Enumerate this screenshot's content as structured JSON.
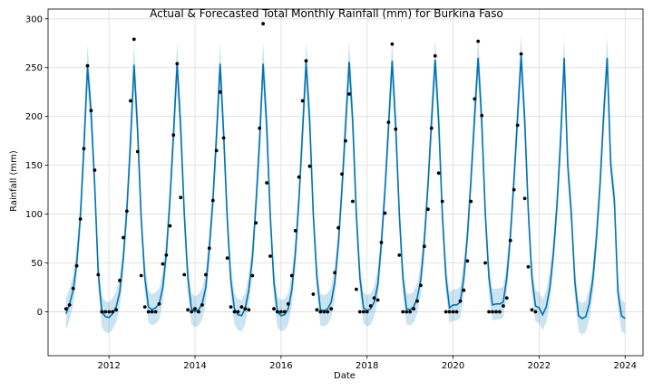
{
  "chart_data": {
    "type": "line",
    "title": "Actual & Forecasted Total Monthly Rainfall (mm) for Burkina Faso",
    "xlabel": "Date",
    "ylabel": "Rainfall (mm)",
    "xlim": [
      "2010-08-01",
      "2024-06-01"
    ],
    "ylim": [
      -45,
      310
    ],
    "x_ticks": [
      "2012",
      "2014",
      "2016",
      "2018",
      "2020",
      "2022",
      "2024"
    ],
    "y_ticks": [
      0,
      50,
      100,
      150,
      200,
      250,
      300
    ],
    "grid": true,
    "legend": "none",
    "colors": {
      "line": "#0072B2",
      "band": "#0072B2",
      "points": "#000000"
    },
    "forecast": {
      "months_start": "2011-01",
      "values": [
        -2,
        8,
        22,
        50,
        97,
        168,
        251,
        205,
        130,
        40,
        0,
        -5,
        -6,
        -2,
        5,
        20,
        55,
        105,
        174,
        253,
        185,
        95,
        35,
        5,
        2,
        4,
        8,
        25,
        60,
        115,
        182,
        254,
        190,
        100,
        35,
        3,
        0,
        2,
        8,
        25,
        65,
        115,
        180,
        254,
        182,
        95,
        32,
        3,
        -3,
        -4,
        3,
        22,
        55,
        110,
        175,
        254,
        190,
        98,
        30,
        0,
        -4,
        -3,
        3,
        22,
        60,
        115,
        185,
        255,
        195,
        100,
        35,
        2,
        1,
        3,
        10,
        30,
        70,
        125,
        190,
        256,
        195,
        100,
        35,
        4,
        1,
        3,
        10,
        28,
        70,
        125,
        190,
        257,
        190,
        100,
        35,
        3,
        2,
        5,
        14,
        33,
        73,
        130,
        195,
        258,
        195,
        100,
        35,
        4,
        7,
        7,
        10,
        35,
        78,
        135,
        200,
        260,
        195,
        100,
        35,
        7,
        8,
        8,
        10,
        35,
        78,
        135,
        200,
        262,
        195,
        103,
        35,
        6,
        4,
        -3,
        5,
        25,
        60,
        110,
        175,
        260,
        150,
        100,
        30,
        -4,
        -7,
        -5,
        8,
        33,
        75,
        130,
        200,
        260,
        150,
        115,
        20,
        -4,
        -7
      ]
    },
    "uncertainty_halfwidth": 16,
    "actual": {
      "months_start": "2011-01",
      "values": [
        3,
        7,
        24,
        47,
        95,
        167,
        252,
        206,
        145,
        38,
        0,
        0,
        0,
        0,
        2,
        32,
        76,
        103,
        216,
        279,
        164,
        37,
        5,
        0,
        0,
        0,
        8,
        49,
        58,
        88,
        181,
        254,
        117,
        38,
        2,
        0,
        3,
        0,
        7,
        38,
        65,
        114,
        165,
        225,
        178,
        55,
        5,
        0,
        0,
        5,
        3,
        2,
        37,
        91,
        188,
        295,
        132,
        57,
        3,
        0,
        0,
        0,
        8,
        37,
        83,
        138,
        216,
        257,
        149,
        18,
        2,
        0,
        0,
        0,
        3,
        40,
        86,
        141,
        175,
        223,
        113,
        23,
        0,
        0,
        0,
        6,
        14,
        12,
        71,
        101,
        194,
        274,
        187,
        58,
        0,
        0,
        0,
        3,
        11,
        27,
        67,
        105,
        188,
        262,
        142,
        113,
        0,
        0,
        0,
        0,
        11,
        22,
        52,
        113,
        218,
        277,
        201,
        50,
        0,
        0,
        0,
        0,
        6,
        14,
        73,
        125,
        191,
        264,
        116,
        46,
        2,
        0
      ]
    }
  }
}
